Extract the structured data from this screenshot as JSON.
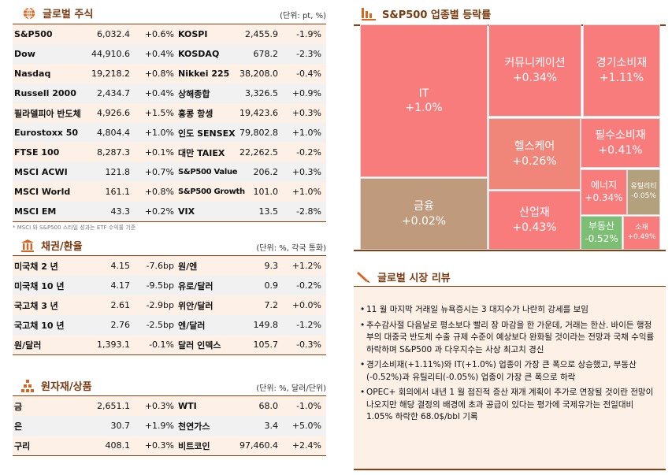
{
  "equity": {
    "title": "글로벌 주식",
    "unit": "(단위: pt, %)",
    "icon": "globe-icon",
    "rows": [
      [
        "S&P500",
        "6,032.4",
        "+0.6%",
        "KOSPI",
        "2,455.9",
        "-1.9%"
      ],
      [
        "Dow",
        "44,910.6",
        "+0.4%",
        "KOSDAQ",
        "678.2",
        "-2.3%"
      ],
      [
        "Nasdaq",
        "19,218.2",
        "+0.8%",
        "Nikkei 225",
        "38,208.0",
        "-0.4%"
      ],
      [
        "Russell 2000",
        "2,434.7",
        "+0.4%",
        "상해종합",
        "3,326.5",
        "+0.9%"
      ],
      [
        "필라델피아 반도체",
        "4,926.6",
        "+1.5%",
        "홍콩 항셍",
        "19,423.6",
        "+0.3%"
      ],
      [
        "Eurostoxx 50",
        "4,804.4",
        "+1.0%",
        "인도 SENSEX",
        "79,802.8",
        "+1.0%"
      ],
      [
        "FTSE 100",
        "8,287.3",
        "+0.1%",
        "대만 TAIEX",
        "22,262.5",
        "-0.2%"
      ],
      [
        "MSCI ACWI",
        "121.8",
        "+0.7%",
        "S&P500 Value",
        "206.2",
        "+0.3%"
      ],
      [
        "MSCI World",
        "161.1",
        "+0.8%",
        "S&P500 Growth",
        "101.0",
        "+1.0%"
      ],
      [
        "MSCI EM",
        "43.3",
        "+0.2%",
        "VIX",
        "13.5",
        "-2.8%"
      ]
    ],
    "footnote": "* MSCI 와 S&P500 스타일 성과는 ETF 수익률 기준"
  },
  "bonds": {
    "title": "채권/환율",
    "unit": "(단위: %, 각국 통화)",
    "icon": "bank-icon",
    "rows": [
      [
        "미국채 2 년",
        "4.15",
        "-7.6bp",
        "원/엔",
        "9.3",
        "+1.2%"
      ],
      [
        "미국채 10 년",
        "4.17",
        "-9.5bp",
        "유로/달러",
        "0.9",
        "-0.2%"
      ],
      [
        "국고채 3 년",
        "2.61",
        "-2.9bp",
        "위안/달러",
        "7.2",
        "+0.0%"
      ],
      [
        "국고채 10 년",
        "2.76",
        "-2.5bp",
        "엔/달러",
        "149.8",
        "-1.2%"
      ],
      [
        "원/달러",
        "1,393.1",
        "-0.1%",
        "달러 인덱스",
        "105.7",
        "-0.3%"
      ]
    ]
  },
  "commodities": {
    "title": "원자재/상품",
    "unit": "(단위: %, 달러/단위)",
    "icon": "gold-bars-icon",
    "rows": [
      [
        "금",
        "2,651.1",
        "+0.3%",
        "WTI",
        "68.0",
        "-1.0%"
      ],
      [
        "은",
        "30.7",
        "+1.9%",
        "천연가스",
        "3.4",
        "+5.0%"
      ],
      [
        "구리",
        "408.1",
        "+0.3%",
        "비트코인",
        "97,460.4",
        "+2.4%"
      ]
    ]
  },
  "sectors": {
    "title": "S&P500 업종별 등락률",
    "icon": "bar-chart-icon",
    "colors": {
      "up": "#f87c7c",
      "flat": "#c09a7c",
      "mild": "#f0857a",
      "neutral": "#b3a07c",
      "down": "#7cbf74"
    },
    "items": [
      {
        "name": "IT",
        "value": "+1.0%",
        "color": "#f87c7c"
      },
      {
        "name": "금융",
        "value": "+0.02%",
        "color": "#c09a7c"
      },
      {
        "name": "커뮤니케이션",
        "value": "+0.34%",
        "color": "#f87c7c"
      },
      {
        "name": "경기소비재",
        "value": "+1.11%",
        "color": "#f87c7c"
      },
      {
        "name": "헬스케어",
        "value": "+0.26%",
        "color": "#f0857a"
      },
      {
        "name": "필수소비재",
        "value": "+0.41%",
        "color": "#f87c7c"
      },
      {
        "name": "산업재",
        "value": "+0.43%",
        "color": "#f87c7c"
      },
      {
        "name": "에너지",
        "value": "+0.34%",
        "color": "#f87c7c"
      },
      {
        "name": "유틸리티",
        "value": "-0.05%",
        "color": "#b3a07c"
      },
      {
        "name": "부동산",
        "value": "-0.52%",
        "color": "#7cbf74"
      },
      {
        "name": "소재",
        "value": "+0.49%",
        "color": "#f87c7c"
      }
    ]
  },
  "review": {
    "title": "글로벌 시장 리뷰",
    "icon": "pen-icon",
    "bullets": [
      "11 월 마지막 거래일 뉴욕증시는 3 대지수가 나란히 강세를 보임",
      "추수감사절 다음날로 평소보다 빨리 장 마감을 한 가운데, 거래는 한산. 바이든 행정부의 대중국 반도체 수출 규제 수준이 예상보다 완화될 것이라는 전망과 국채 수익률 하락하며 S&P500 과 다우지수는 사상 최고치 경신",
      "경기소비재(+1.11%)와 IT(+1.0%) 업종이 가장 큰 폭으로 상승했고, 부동산(-0.52%)과 유틸리티(-0.05%) 업종이 가장 큰 폭으로 하락",
      "OPEC+ 회의에서 내년 1 월 점진적 증산 재개 계획이 추가로 연장될 것이란 전망이 나오지만 해당 결정의 배경에 초과 공급이 있다는 평가에 국제유가는 전일대비 1.05% 하락한 68.0$/bbl 기록"
    ]
  }
}
